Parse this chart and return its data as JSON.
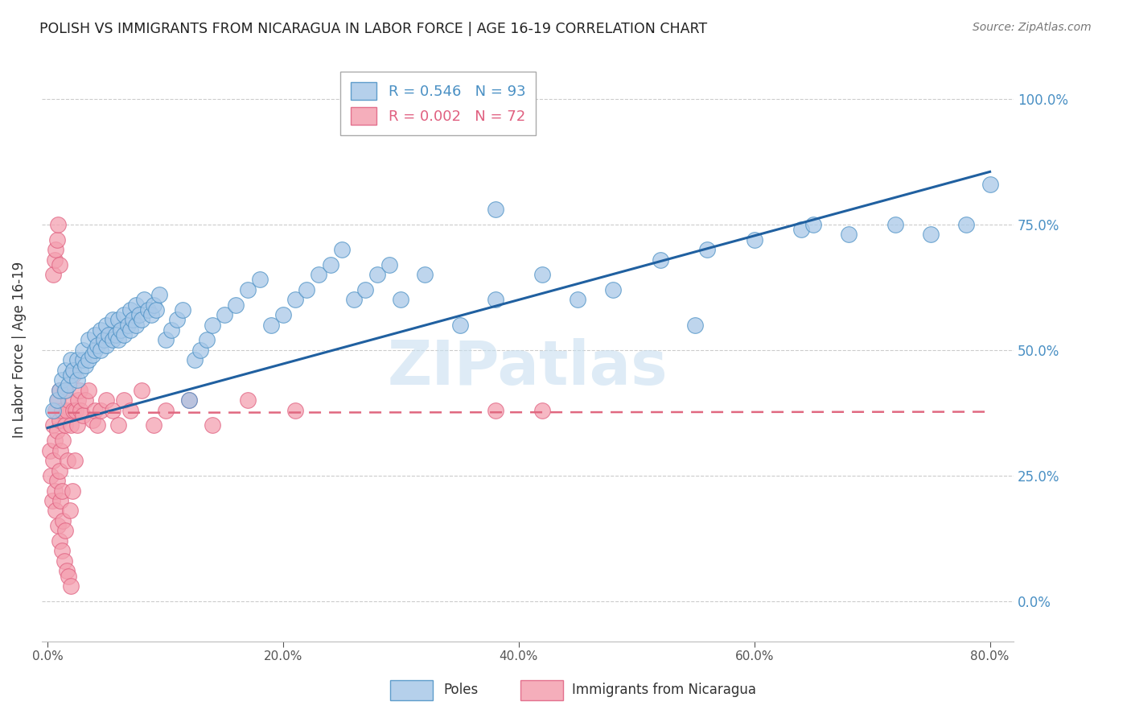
{
  "title": "POLISH VS IMMIGRANTS FROM NICARAGUA IN LABOR FORCE | AGE 16-19 CORRELATION CHART",
  "source": "Source: ZipAtlas.com",
  "ylabel": "In Labor Force | Age 16-19",
  "xlabel_ticks": [
    "0.0%",
    "20.0%",
    "40.0%",
    "60.0%",
    "80.0%"
  ],
  "ylabel_right_ticks": [
    "0.0%",
    "25.0%",
    "50.0%",
    "75.0%",
    "100.0%"
  ],
  "xlabel_tick_vals": [
    0.0,
    0.2,
    0.4,
    0.6,
    0.8
  ],
  "ylabel_tick_vals": [
    0.0,
    0.25,
    0.5,
    0.75,
    1.0
  ],
  "xlim": [
    -0.005,
    0.82
  ],
  "ylim": [
    -0.08,
    1.08
  ],
  "poles_R": 0.546,
  "poles_N": 93,
  "nicaragua_R": 0.002,
  "nicaragua_N": 72,
  "poles_color": "#a8c8e8",
  "poles_edge_color": "#4a90c4",
  "nicaragua_color": "#f4a0b0",
  "nicaragua_edge_color": "#e06080",
  "blue_line_color": "#2060a0",
  "pink_line_color": "#e06880",
  "watermark": "ZIPatlas",
  "legend_label_poles": "Poles",
  "legend_label_nicaragua": "Immigrants from Nicaragua",
  "poles_x": [
    0.005,
    0.008,
    0.01,
    0.012,
    0.015,
    0.015,
    0.018,
    0.02,
    0.02,
    0.022,
    0.025,
    0.025,
    0.028,
    0.03,
    0.03,
    0.032,
    0.035,
    0.035,
    0.038,
    0.04,
    0.04,
    0.042,
    0.045,
    0.045,
    0.048,
    0.05,
    0.05,
    0.052,
    0.055,
    0.055,
    0.058,
    0.06,
    0.06,
    0.062,
    0.065,
    0.065,
    0.068,
    0.07,
    0.07,
    0.072,
    0.075,
    0.075,
    0.078,
    0.08,
    0.082,
    0.085,
    0.088,
    0.09,
    0.092,
    0.095,
    0.1,
    0.105,
    0.11,
    0.115,
    0.12,
    0.125,
    0.13,
    0.135,
    0.14,
    0.15,
    0.16,
    0.17,
    0.18,
    0.19,
    0.2,
    0.21,
    0.22,
    0.23,
    0.24,
    0.25,
    0.26,
    0.27,
    0.28,
    0.29,
    0.3,
    0.32,
    0.35,
    0.38,
    0.42,
    0.45,
    0.48,
    0.52,
    0.56,
    0.6,
    0.64,
    0.68,
    0.72,
    0.75,
    0.78,
    0.8,
    0.38,
    0.55,
    0.65
  ],
  "poles_y": [
    0.38,
    0.4,
    0.42,
    0.44,
    0.42,
    0.46,
    0.43,
    0.45,
    0.48,
    0.46,
    0.44,
    0.48,
    0.46,
    0.48,
    0.5,
    0.47,
    0.48,
    0.52,
    0.49,
    0.5,
    0.53,
    0.51,
    0.5,
    0.54,
    0.52,
    0.51,
    0.55,
    0.53,
    0.52,
    0.56,
    0.53,
    0.52,
    0.56,
    0.54,
    0.53,
    0.57,
    0.55,
    0.54,
    0.58,
    0.56,
    0.55,
    0.59,
    0.57,
    0.56,
    0.6,
    0.58,
    0.57,
    0.59,
    0.58,
    0.61,
    0.52,
    0.54,
    0.56,
    0.58,
    0.4,
    0.48,
    0.5,
    0.52,
    0.55,
    0.57,
    0.59,
    0.62,
    0.64,
    0.55,
    0.57,
    0.6,
    0.62,
    0.65,
    0.67,
    0.7,
    0.6,
    0.62,
    0.65,
    0.67,
    0.6,
    0.65,
    0.55,
    0.6,
    0.65,
    0.6,
    0.62,
    0.68,
    0.7,
    0.72,
    0.74,
    0.73,
    0.75,
    0.73,
    0.75,
    0.83,
    0.78,
    0.55,
    0.75
  ],
  "nic_x": [
    0.002,
    0.003,
    0.004,
    0.005,
    0.005,
    0.006,
    0.006,
    0.007,
    0.007,
    0.008,
    0.008,
    0.009,
    0.009,
    0.01,
    0.01,
    0.01,
    0.01,
    0.011,
    0.011,
    0.012,
    0.012,
    0.012,
    0.013,
    0.013,
    0.014,
    0.014,
    0.015,
    0.015,
    0.016,
    0.016,
    0.017,
    0.018,
    0.018,
    0.019,
    0.02,
    0.02,
    0.021,
    0.022,
    0.022,
    0.023,
    0.024,
    0.025,
    0.026,
    0.027,
    0.028,
    0.03,
    0.032,
    0.035,
    0.038,
    0.04,
    0.042,
    0.045,
    0.05,
    0.055,
    0.06,
    0.065,
    0.07,
    0.08,
    0.09,
    0.1,
    0.12,
    0.14,
    0.17,
    0.21,
    0.38,
    0.42,
    0.005,
    0.006,
    0.007,
    0.008,
    0.009,
    0.01
  ],
  "nic_y": [
    0.3,
    0.25,
    0.2,
    0.28,
    0.35,
    0.22,
    0.32,
    0.18,
    0.38,
    0.24,
    0.34,
    0.15,
    0.4,
    0.12,
    0.26,
    0.36,
    0.42,
    0.2,
    0.3,
    0.1,
    0.22,
    0.38,
    0.16,
    0.32,
    0.08,
    0.42,
    0.14,
    0.35,
    0.06,
    0.38,
    0.28,
    0.05,
    0.4,
    0.18,
    0.03,
    0.35,
    0.22,
    0.38,
    0.45,
    0.28,
    0.38,
    0.35,
    0.4,
    0.42,
    0.38,
    0.37,
    0.4,
    0.42,
    0.36,
    0.38,
    0.35,
    0.38,
    0.4,
    0.38,
    0.35,
    0.4,
    0.38,
    0.42,
    0.35,
    0.38,
    0.4,
    0.35,
    0.4,
    0.38,
    0.38,
    0.38,
    0.65,
    0.68,
    0.7,
    0.72,
    0.75,
    0.67
  ],
  "blue_trendline_x": [
    0.0,
    0.8
  ],
  "blue_trendline_y": [
    0.345,
    0.855
  ],
  "pink_trendline_x": [
    0.0,
    0.8
  ],
  "pink_trendline_y": [
    0.375,
    0.377
  ]
}
